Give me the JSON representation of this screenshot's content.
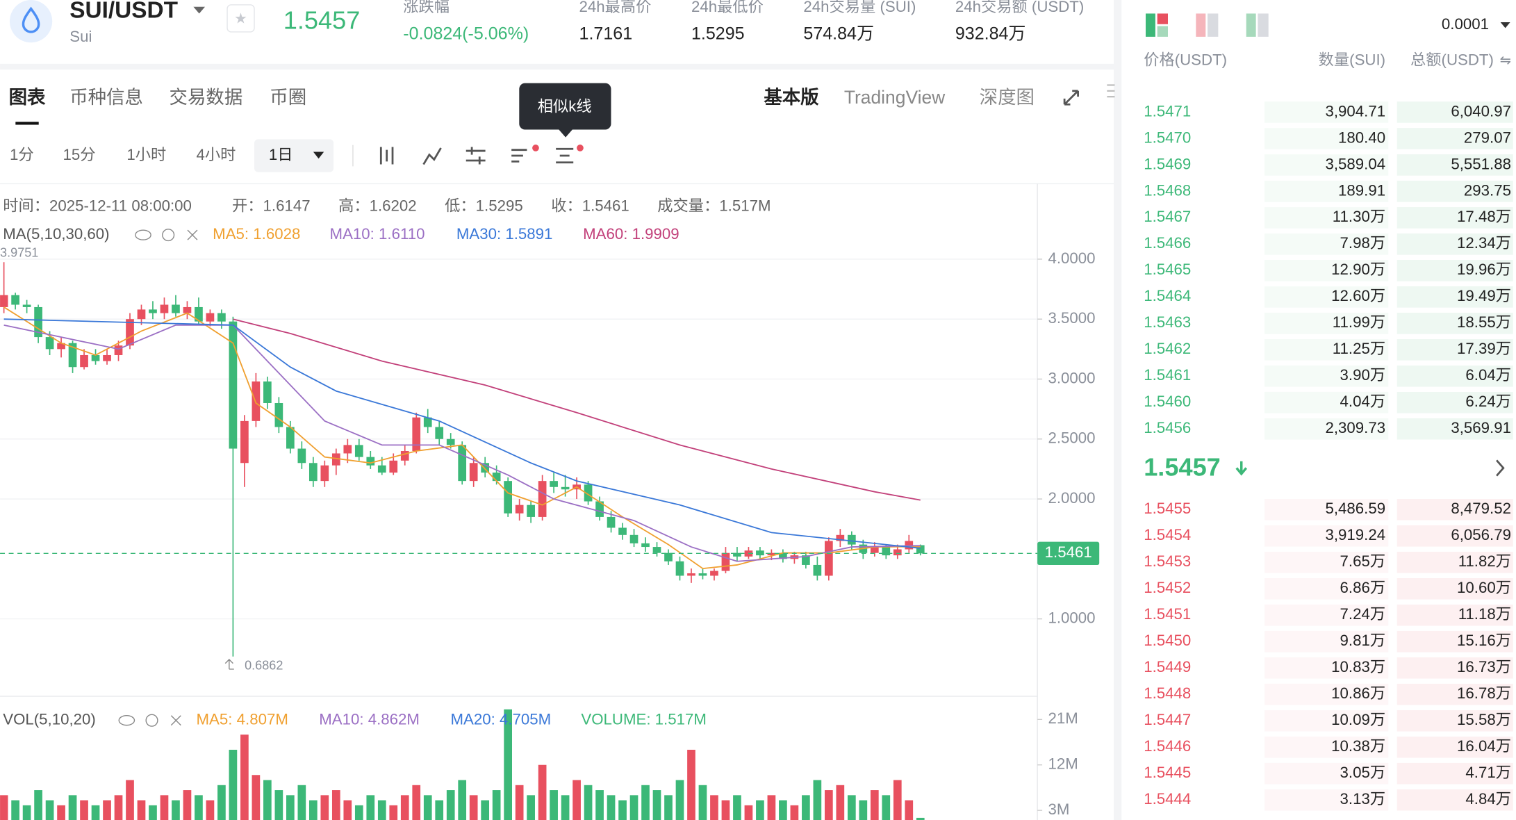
{
  "header": {
    "pair": "SUI/USDT",
    "coin": "Sui",
    "price": "1.5457",
    "stats": [
      {
        "label": "涨跌幅",
        "value": "-0.0824(-5.06%)"
      },
      {
        "label": "24h最高价",
        "value": "1.7161"
      },
      {
        "label": "24h最低价",
        "value": "1.5295"
      },
      {
        "label": "24h交易量 (SUI)",
        "value": "574.84万"
      },
      {
        "label": "24h交易额 (USDT)",
        "value": "932.84万"
      }
    ]
  },
  "tabs": [
    "图表",
    "币种信息",
    "交易数据",
    "币圈"
  ],
  "tooltip": "相似k线",
  "views": [
    "基本版",
    "TradingView",
    "深度图"
  ],
  "intervals": [
    "1分",
    "15分",
    "1小时",
    "4小时",
    "1日"
  ],
  "chart_data": {
    "type": "candlestick",
    "info": [
      "时间：2025-12-11 08:00:00",
      "开：1.6147",
      "高：1.6202",
      "低：1.5295",
      "收：1.5461",
      "成交量：1.517M"
    ],
    "ma_title": "MA(5,10,30,60)",
    "max_label": "3.9751",
    "min_label": "0.6862",
    "ylim": [
      0.355,
      4.629
    ],
    "yticks": [
      {
        "value": 4,
        "label": "4.0000"
      },
      {
        "value": 3.5,
        "label": "3.5000"
      },
      {
        "value": 3,
        "label": "3.0000"
      },
      {
        "value": 2.5,
        "label": "2.5000"
      },
      {
        "value": 2,
        "label": "2.0000"
      },
      {
        "value": 1,
        "label": "1.0000"
      }
    ],
    "last_label": "1.5461",
    "open": [
      3.6,
      3.7,
      3.62,
      3.6,
      3.35,
      3.25,
      3.3,
      3.1,
      3.2,
      3.15,
      3.2,
      3.28,
      3.5,
      3.58,
      3.55,
      3.62,
      3.55,
      3.6,
      3.48,
      3.55,
      3.48,
      2.3,
      2.65,
      2.98,
      2.8,
      2.6,
      2.42,
      2.3,
      2.15,
      2.28,
      2.38,
      2.45,
      2.35,
      2.28,
      2.22,
      2.32,
      2.4,
      2.68,
      2.6,
      2.5,
      2.45,
      2.15,
      2.3,
      2.22,
      2.15,
      1.88,
      1.95,
      1.85,
      2.15,
      2.1,
      2.08,
      2.12,
      1.98,
      1.85,
      1.76,
      1.7,
      1.63,
      1.6,
      1.55,
      1.48,
      1.36,
      1.38,
      1.36,
      1.4,
      1.55,
      1.52,
      1.57,
      1.53,
      1.55,
      1.5,
      1.53,
      1.45,
      1.36,
      1.65,
      1.7,
      1.62,
      1.55,
      1.6,
      1.53,
      1.58,
      1.6147
    ],
    "high": [
      3.9751,
      3.72,
      3.66,
      3.62,
      3.4,
      3.35,
      3.32,
      3.25,
      3.25,
      3.25,
      3.32,
      3.55,
      3.62,
      3.65,
      3.68,
      3.7,
      3.65,
      3.68,
      3.58,
      3.58,
      3.52,
      2.7,
      3.05,
      3.02,
      2.85,
      2.65,
      2.48,
      2.35,
      2.32,
      2.42,
      2.5,
      2.5,
      2.4,
      2.35,
      2.38,
      2.45,
      2.72,
      2.75,
      2.65,
      2.55,
      2.48,
      2.35,
      2.35,
      2.28,
      2.18,
      2,
      1.98,
      2.2,
      2.22,
      2.2,
      2.18,
      2.15,
      2.02,
      1.9,
      1.8,
      1.75,
      1.68,
      1.64,
      1.58,
      1.52,
      1.42,
      1.42,
      1.42,
      1.6,
      1.6,
      1.6,
      1.6,
      1.58,
      1.58,
      1.56,
      1.56,
      1.52,
      1.68,
      1.75,
      1.73,
      1.66,
      1.64,
      1.62,
      1.62,
      1.7,
      1.6202
    ],
    "low": [
      3.55,
      3.58,
      3.55,
      3.3,
      3.2,
      3.18,
      3.05,
      3.08,
      3.12,
      3.12,
      3.15,
      3.25,
      3.45,
      3.5,
      3.5,
      3.52,
      3.5,
      3.45,
      3.44,
      3.42,
      0.6862,
      2.1,
      2.6,
      2.75,
      2.55,
      2.38,
      2.25,
      2.1,
      2.1,
      2.2,
      2.3,
      2.32,
      2.25,
      2.2,
      2.2,
      2.28,
      2.38,
      2.55,
      2.45,
      2.42,
      2.12,
      2.1,
      2.18,
      2.12,
      1.85,
      1.82,
      1.8,
      1.82,
      2.05,
      2.02,
      2,
      1.95,
      1.82,
      1.72,
      1.66,
      1.6,
      1.56,
      1.52,
      1.45,
      1.32,
      1.3,
      1.33,
      1.32,
      1.38,
      1.48,
      1.5,
      1.5,
      1.49,
      1.47,
      1.46,
      1.42,
      1.32,
      1.32,
      1.6,
      1.58,
      1.5,
      1.52,
      1.5,
      1.5,
      1.55,
      1.5295
    ],
    "close": [
      3.7,
      3.62,
      3.6,
      3.35,
      3.25,
      3.3,
      3.1,
      3.2,
      3.15,
      3.2,
      3.28,
      3.5,
      3.58,
      3.55,
      3.62,
      3.55,
      3.6,
      3.48,
      3.55,
      3.48,
      2.42,
      2.65,
      2.98,
      2.8,
      2.6,
      2.42,
      2.3,
      2.15,
      2.28,
      2.38,
      2.45,
      2.35,
      2.28,
      2.22,
      2.32,
      2.4,
      2.68,
      2.6,
      2.5,
      2.45,
      2.15,
      2.3,
      2.22,
      2.15,
      1.88,
      1.95,
      1.85,
      2.15,
      2.1,
      2.08,
      2.12,
      1.98,
      1.85,
      1.76,
      1.7,
      1.63,
      1.6,
      1.55,
      1.48,
      1.36,
      1.38,
      1.36,
      1.4,
      1.55,
      1.52,
      1.57,
      1.53,
      1.55,
      1.5,
      1.53,
      1.45,
      1.36,
      1.65,
      1.7,
      1.62,
      1.55,
      1.6,
      1.53,
      1.58,
      1.65,
      1.5461
    ],
    "up_color": "#e8505f",
    "down_color": "#3cb878",
    "ma_lines": [
      {
        "name": "MA5: 1.6028",
        "color": "#f0a030",
        "x": [
          0,
          5,
          8,
          12,
          16,
          20,
          22,
          25,
          28,
          32,
          36,
          40,
          44,
          47,
          50,
          54,
          58,
          61,
          64,
          68,
          72,
          76,
          80
        ],
        "values": [
          3.6,
          3.3,
          3.2,
          3.4,
          3.55,
          3.3,
          2.8,
          2.6,
          2.35,
          2.3,
          2.4,
          2.45,
          2.05,
          1.95,
          2.1,
          1.85,
          1.62,
          1.42,
          1.45,
          1.55,
          1.55,
          1.6,
          1.6028
        ]
      },
      {
        "name": "MA10: 1.6110",
        "color": "#9b6fc4",
        "x": [
          0,
          10,
          15,
          20,
          24,
          28,
          33,
          38,
          44,
          48,
          55,
          60,
          64,
          70,
          74,
          80
        ],
        "values": [
          3.45,
          3.25,
          3.45,
          3.45,
          3.05,
          2.65,
          2.45,
          2.45,
          2.2,
          2,
          1.82,
          1.6,
          1.48,
          1.52,
          1.6,
          1.611
        ]
      },
      {
        "name": "MA30: 1.5891",
        "color": "#3a78d8",
        "x": [
          0,
          20,
          25,
          29,
          38,
          46,
          50,
          59,
          67,
          72,
          80
        ],
        "values": [
          3.5,
          3.45,
          3.1,
          2.9,
          2.65,
          2.3,
          2.15,
          1.95,
          1.72,
          1.67,
          1.5891
        ]
      },
      {
        "name": "MA60: 1.9909",
        "color": "#c2407a",
        "x": [
          20,
          25,
          33,
          42,
          50,
          59,
          67,
          76,
          80
        ],
        "values": [
          3.5,
          3.38,
          3.15,
          2.95,
          2.72,
          2.45,
          2.25,
          2.06,
          1.9909
        ]
      }
    ],
    "volume": {
      "title": "VOL(5,10,20)",
      "legend": [
        {
          "name": "MA5: 4.807M",
          "color": "#f0a030"
        },
        {
          "name": "MA10: 4.862M",
          "color": "#9b6fc4"
        },
        {
          "name": "MA20: 4.705M",
          "color": "#3a78d8"
        },
        {
          "name": "VOLUME: 1.517M",
          "color": "#3cb878"
        }
      ],
      "ylim": [
        0,
        25.6
      ],
      "yticks": [
        {
          "value": 21,
          "label": "21M"
        },
        {
          "value": 12,
          "label": "12M"
        },
        {
          "value": 3,
          "label": "3M"
        }
      ],
      "values": [
        6,
        5,
        4,
        7,
        5,
        4,
        6,
        5,
        4,
        5,
        6,
        9,
        5,
        4,
        6,
        5,
        7,
        6,
        5,
        8,
        15,
        18,
        10,
        9,
        7,
        6,
        8,
        5,
        6,
        7,
        5,
        4,
        6,
        5,
        4,
        6,
        8,
        6,
        5,
        7,
        9,
        6,
        5,
        7,
        23,
        8,
        6,
        12,
        7,
        6,
        9,
        8,
        7,
        6,
        5,
        6,
        8,
        7,
        6,
        9,
        15,
        8,
        6,
        5,
        6,
        4,
        5,
        6,
        5,
        4,
        6,
        9,
        7,
        8,
        6,
        5,
        7,
        6,
        9,
        5,
        1.517
      ]
    }
  },
  "order_book": {
    "precision": "0.0001",
    "columns": [
      "价格(USDT)",
      "数量(SUI)",
      "总额(USDT)"
    ],
    "asks": [
      [
        "1.5471",
        "3,904.71",
        "6,040.97"
      ],
      [
        "1.5470",
        "180.40",
        "279.07"
      ],
      [
        "1.5469",
        "3,589.04",
        "5,551.88"
      ],
      [
        "1.5468",
        "189.91",
        "293.75"
      ],
      [
        "1.5467",
        "11.30万",
        "17.48万"
      ],
      [
        "1.5466",
        "7.98万",
        "12.34万"
      ],
      [
        "1.5465",
        "12.90万",
        "19.96万"
      ],
      [
        "1.5464",
        "12.60万",
        "19.49万"
      ],
      [
        "1.5463",
        "11.99万",
        "18.55万"
      ],
      [
        "1.5462",
        "11.25万",
        "17.39万"
      ],
      [
        "1.5461",
        "3.90万",
        "6.04万"
      ],
      [
        "1.5460",
        "4.04万",
        "6.24万"
      ],
      [
        "1.5456",
        "2,309.73",
        "3,569.91"
      ]
    ],
    "mid": "1.5457",
    "bids": [
      [
        "1.5455",
        "5,486.59",
        "8,479.52"
      ],
      [
        "1.5454",
        "3,919.24",
        "6,056.79"
      ],
      [
        "1.5453",
        "7.65万",
        "11.82万"
      ],
      [
        "1.5452",
        "6.86万",
        "10.60万"
      ],
      [
        "1.5451",
        "7.24万",
        "11.18万"
      ],
      [
        "1.5450",
        "9.81万",
        "15.16万"
      ],
      [
        "1.5449",
        "10.83万",
        "16.73万"
      ],
      [
        "1.5448",
        "10.86万",
        "16.78万"
      ],
      [
        "1.5447",
        "10.09万",
        "15.58万"
      ],
      [
        "1.5446",
        "10.38万",
        "16.04万"
      ],
      [
        "1.5445",
        "3.05万",
        "4.71万"
      ],
      [
        "1.5444",
        "3.13万",
        "4.84万"
      ]
    ]
  }
}
